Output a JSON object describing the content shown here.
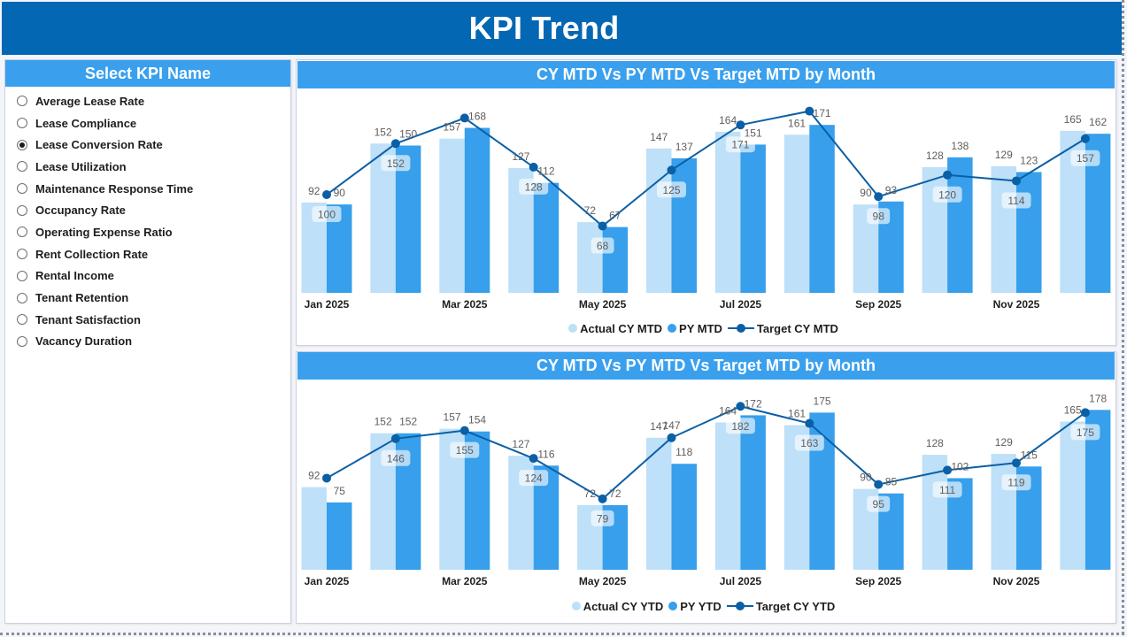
{
  "header": {
    "title": "KPI Trend"
  },
  "kpi_selector": {
    "title": "Select KPI Name",
    "selected": "Lease Conversion Rate",
    "items": [
      "Average Lease Rate",
      "Lease Compliance",
      "Lease Conversion Rate",
      "Lease Utilization",
      "Maintenance Response Time",
      "Occupancy Rate",
      "Operating Expense Ratio",
      "Rent Collection Rate",
      "Rental Income",
      "Tenant Retention",
      "Tenant Satisfaction",
      "Vacancy Duration"
    ]
  },
  "colors": {
    "title_bar": "#0467B3",
    "panel_header": "#3AA0EE",
    "actual": "#BEE0F8",
    "py": "#379FEB",
    "target": "#0B5FA5",
    "data_label": "#605E5C",
    "axis_label": "#1E1E1E"
  },
  "chart_data": [
    {
      "type": "bar",
      "title": "CY MTD Vs PY MTD Vs Target MTD by Month",
      "xlabel": "",
      "ylabel": "",
      "ylim": [
        0,
        200
      ],
      "grid": false,
      "legend": "bottom-center",
      "categories": [
        "Jan 2025",
        "Feb 2025",
        "Mar 2025",
        "Apr 2025",
        "May 2025",
        "Jun 2025",
        "Jul 2025",
        "Aug 2025",
        "Sep 2025",
        "Oct 2025",
        "Nov 2025",
        "Dec 2025"
      ],
      "x_tick_labels": [
        "Jan 2025",
        "Mar 2025",
        "May 2025",
        "Jul 2025",
        "Sep 2025",
        "Nov 2025"
      ],
      "series": [
        {
          "name": "Actual CY MTD",
          "type": "bar",
          "values": [
            92,
            152,
            157,
            127,
            72,
            147,
            164,
            161,
            90,
            128,
            129,
            165
          ]
        },
        {
          "name": "PY MTD",
          "type": "bar",
          "values": [
            90,
            150,
            168,
            112,
            67,
            137,
            151,
            171,
            93,
            138,
            123,
            162
          ]
        },
        {
          "name": "Target CY MTD",
          "type": "line",
          "values": [
            100,
            152,
            178,
            128,
            68,
            125,
            171,
            185,
            98,
            120,
            114,
            157
          ]
        }
      ]
    },
    {
      "type": "bar",
      "title": "CY MTD Vs PY MTD Vs Target MTD by Month",
      "xlabel": "",
      "ylabel": "",
      "ylim": [
        0,
        200
      ],
      "grid": false,
      "legend": "bottom-center",
      "categories": [
        "Jan 2025",
        "Feb 2025",
        "Mar 2025",
        "Apr 2025",
        "May 2025",
        "Jun 2025",
        "Jul 2025",
        "Aug 2025",
        "Sep 2025",
        "Oct 2025",
        "Nov 2025",
        "Dec 2025"
      ],
      "x_tick_labels": [
        "Jan 2025",
        "Mar 2025",
        "May 2025",
        "Jul 2025",
        "Sep 2025",
        "Nov 2025"
      ],
      "series": [
        {
          "name": "Actual CY YTD",
          "type": "bar",
          "values": [
            92,
            152,
            157,
            127,
            72,
            147,
            164,
            161,
            90,
            128,
            129,
            165
          ]
        },
        {
          "name": "PY YTD",
          "type": "bar",
          "values": [
            75,
            152,
            154,
            116,
            72,
            118,
            172,
            175,
            85,
            102,
            115,
            178
          ]
        },
        {
          "name": "Target CY YTD",
          "type": "line",
          "values": [
            102,
            146,
            155,
            124,
            79,
            147,
            182,
            163,
            95,
            111,
            119,
            175
          ]
        }
      ]
    }
  ]
}
